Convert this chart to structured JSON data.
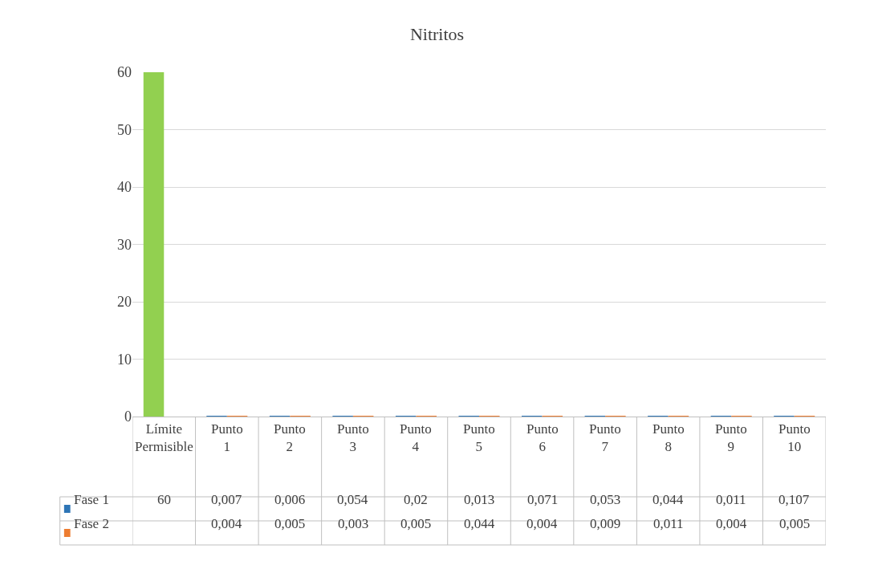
{
  "chart_data": {
    "type": "bar",
    "title": "Nitritos",
    "categories": [
      "Límite Permisible",
      "Punto 1",
      "Punto 2",
      "Punto 3",
      "Punto 4",
      "Punto 5",
      "Punto 6",
      "Punto 7",
      "Punto 8",
      "Punto 9",
      "Punto 10"
    ],
    "series": [
      {
        "name": "Fase 1",
        "color": "#2e75b6",
        "colors": [
          "#92d050",
          "#2e75b6",
          "#2e75b6",
          "#2e75b6",
          "#2e75b6",
          "#2e75b6",
          "#2e75b6",
          "#2e75b6",
          "#2e75b6",
          "#2e75b6",
          "#2e75b6"
        ],
        "values": [
          60,
          0.007,
          0.006,
          0.054,
          0.02,
          0.013,
          0.071,
          0.053,
          0.044,
          0.011,
          0.107
        ],
        "value_labels": [
          "60",
          "0,007",
          "0,006",
          "0,054",
          "0,02",
          "0,013",
          "0,071",
          "0,053",
          "0,044",
          "0,011",
          "0,107"
        ]
      },
      {
        "name": "Fase 2",
        "color": "#ed7d31",
        "values": [
          null,
          0.004,
          0.005,
          0.003,
          0.005,
          0.044,
          0.004,
          0.009,
          0.011,
          0.004,
          0.005
        ],
        "value_labels": [
          null,
          "0,004",
          "0,005",
          "0,003",
          "0,005",
          "0,044",
          "0,004",
          "0,009",
          "0,011",
          "0,004",
          "0,005"
        ]
      }
    ],
    "ylim": [
      0,
      60
    ],
    "yticks": [
      0,
      10,
      20,
      30,
      40,
      50,
      60
    ],
    "grid": "y",
    "legend": "bottom"
  }
}
